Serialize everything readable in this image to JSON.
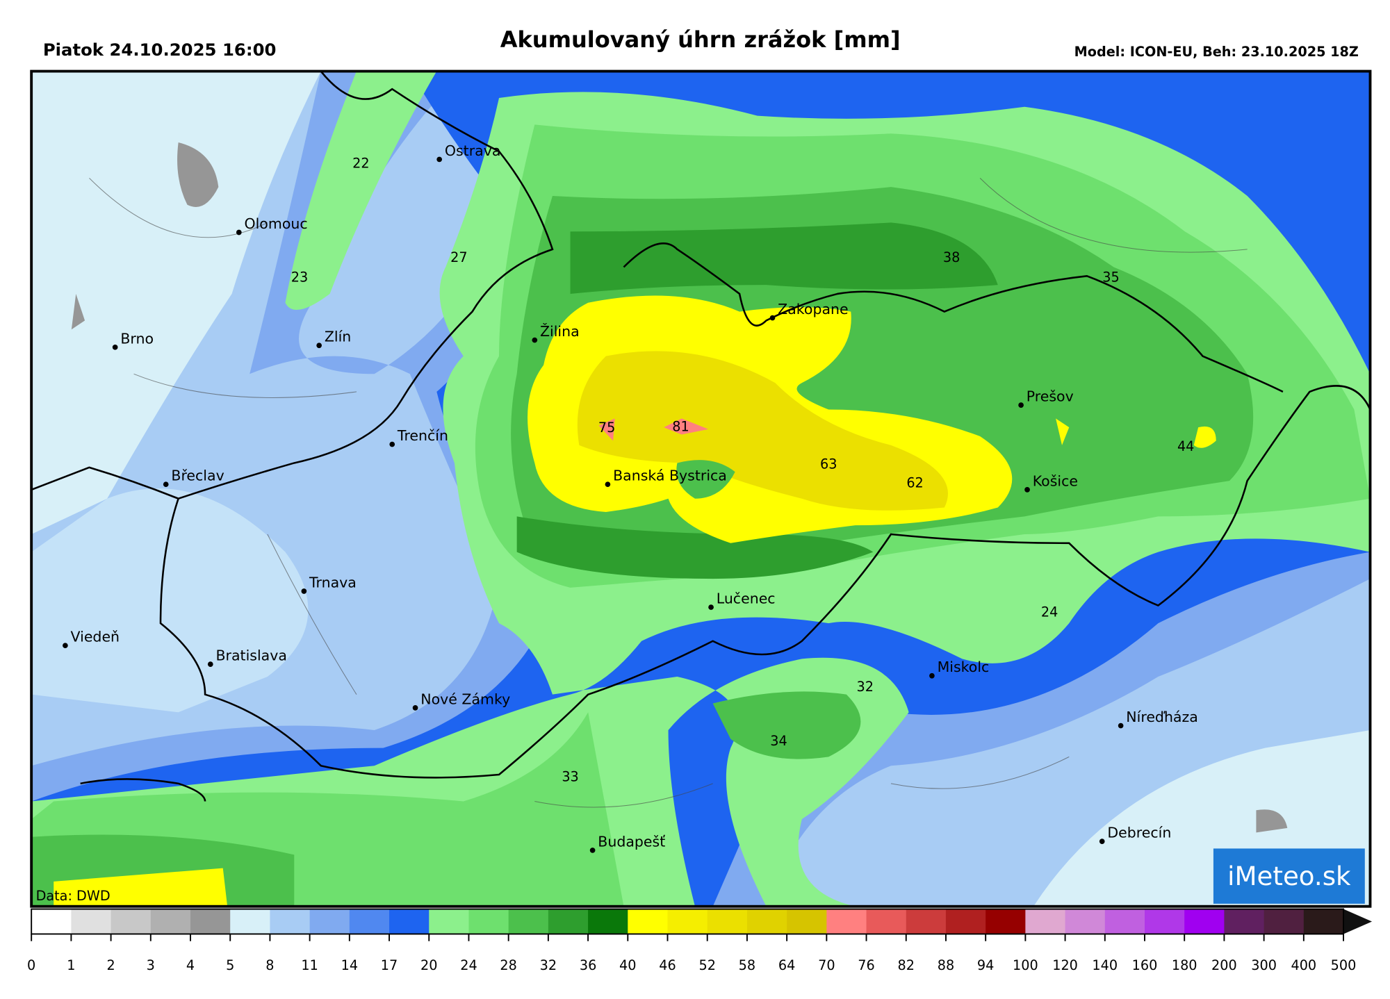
{
  "header": {
    "date": "Piatok 24.10.2025 16:00",
    "title": "Akumulovaný úhrn zrážok [mm]",
    "model": "Model: ICON-EU, Beh: 23.10.2025 18Z"
  },
  "map": {
    "cities": [
      "Ostrava",
      "Olomouc",
      "Brno",
      "Zlín",
      "Žilina",
      "Zakopane",
      "Trenčín",
      "Břeclav",
      "Banská Bystrica",
      "Prešov",
      "Košice",
      "Trnava",
      "Lučenec",
      "Viedeň",
      "Bratislava",
      "Miskolc",
      "Nové Zámky",
      "Níreďháza",
      "Budapešť",
      "Debrecín"
    ],
    "point_values": [
      22,
      23,
      27,
      38,
      35,
      75,
      81,
      63,
      62,
      44,
      24,
      32,
      34,
      33
    ],
    "source": "Data: DWD",
    "logo": "iMeteo.sk"
  },
  "colorbar": {
    "ticks": [
      0,
      1,
      2,
      3,
      4,
      5,
      8,
      11,
      14,
      17,
      20,
      24,
      28,
      32,
      36,
      40,
      46,
      52,
      58,
      64,
      70,
      76,
      82,
      88,
      94,
      100,
      120,
      140,
      160,
      180,
      200,
      300,
      400,
      500
    ],
    "colors": [
      "#ffffff",
      "#e0e0e0",
      "#c8c8c8",
      "#b0b0b0",
      "#969696",
      "#d8f0f8",
      "#a8ccf4",
      "#80aaf0",
      "#5088f0",
      "#1e64f0",
      "#8cf08c",
      "#6ee06e",
      "#4cc04c",
      "#2e9e2e",
      "#0a780a",
      "#ffff00",
      "#f5ee00",
      "#ebe000",
      "#e0d200",
      "#d6c400",
      "#ff8080",
      "#e85a5a",
      "#cc3c3c",
      "#b02020",
      "#960000",
      "#e0a8d0",
      "#d088d8",
      "#c060e0",
      "#b038e8",
      "#a000f0",
      "#602060",
      "#502040",
      "#2a1a1a"
    ],
    "overflow_color": "#111111"
  }
}
